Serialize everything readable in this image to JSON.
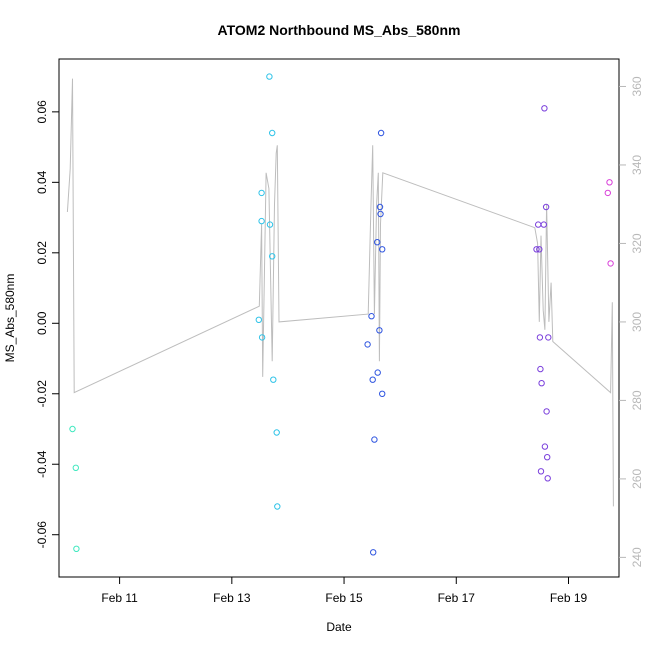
{
  "chart_data": {
    "type": "scatter",
    "title": "ATOM2 Northbound MS_Abs_580nm",
    "xlabel": "Date",
    "ylabel": "MS_Abs_580nm",
    "x_unit": "days since Feb 9 00:00",
    "xlim": [
      0.92,
      10.9
    ],
    "ylim": [
      -0.072,
      0.075
    ],
    "y2lim": [
      235,
      367
    ],
    "x_ticks": [
      {
        "value": 2,
        "label": "Feb 11"
      },
      {
        "value": 4,
        "label": "Feb 13"
      },
      {
        "value": 6,
        "label": "Feb 15"
      },
      {
        "value": 8,
        "label": "Feb 17"
      },
      {
        "value": 10,
        "label": "Feb 19"
      }
    ],
    "y_ticks": [
      {
        "value": -0.06,
        "label": "-0.06"
      },
      {
        "value": -0.04,
        "label": "-0.04"
      },
      {
        "value": -0.02,
        "label": "-0.02"
      },
      {
        "value": 0.0,
        "label": "0.00"
      },
      {
        "value": 0.02,
        "label": "0.02"
      },
      {
        "value": 0.04,
        "label": "0.04"
      },
      {
        "value": 0.06,
        "label": "0.06"
      }
    ],
    "y2_ticks": [
      {
        "value": 240,
        "label": "240"
      },
      {
        "value": 260,
        "label": "260"
      },
      {
        "value": 280,
        "label": "280"
      },
      {
        "value": 300,
        "label": "300"
      },
      {
        "value": 320,
        "label": "320"
      },
      {
        "value": 340,
        "label": "340"
      },
      {
        "value": 360,
        "label": "360"
      }
    ],
    "grid": false,
    "points": [
      {
        "x": 1.16,
        "y": -0.03,
        "color": "#3fe8bf"
      },
      {
        "x": 1.22,
        "y": -0.041,
        "color": "#3fe8bf"
      },
      {
        "x": 1.23,
        "y": -0.064,
        "color": "#3fe8bf"
      },
      {
        "x": 4.48,
        "y": 0.001,
        "color": "#2fc3e8"
      },
      {
        "x": 4.53,
        "y": 0.037,
        "color": "#2fc3e8"
      },
      {
        "x": 4.53,
        "y": 0.029,
        "color": "#2fc3e8"
      },
      {
        "x": 4.54,
        "y": -0.004,
        "color": "#2fc3e8"
      },
      {
        "x": 4.67,
        "y": 0.07,
        "color": "#2fc3e8"
      },
      {
        "x": 4.68,
        "y": 0.028,
        "color": "#2fc3e8"
      },
      {
        "x": 4.72,
        "y": 0.054,
        "color": "#2fc3e8"
      },
      {
        "x": 4.72,
        "y": 0.019,
        "color": "#2fc3e8"
      },
      {
        "x": 4.74,
        "y": -0.016,
        "color": "#2fc3e8"
      },
      {
        "x": 4.8,
        "y": -0.031,
        "color": "#2fc3e8"
      },
      {
        "x": 4.81,
        "y": -0.052,
        "color": "#2fc3e8"
      },
      {
        "x": 6.42,
        "y": -0.006,
        "color": "#2f55e0"
      },
      {
        "x": 6.49,
        "y": 0.002,
        "color": "#2f55e0"
      },
      {
        "x": 6.51,
        "y": -0.016,
        "color": "#2f55e0"
      },
      {
        "x": 6.54,
        "y": -0.033,
        "color": "#2f55e0"
      },
      {
        "x": 6.52,
        "y": -0.065,
        "color": "#2f55e0"
      },
      {
        "x": 6.59,
        "y": 0.023,
        "color": "#2f55e0"
      },
      {
        "x": 6.6,
        "y": -0.014,
        "color": "#2f55e0"
      },
      {
        "x": 6.63,
        "y": -0.002,
        "color": "#2f55e0"
      },
      {
        "x": 6.64,
        "y": 0.033,
        "color": "#2f55e0"
      },
      {
        "x": 6.65,
        "y": 0.031,
        "color": "#2f55e0"
      },
      {
        "x": 6.66,
        "y": 0.054,
        "color": "#2f55e0"
      },
      {
        "x": 6.68,
        "y": 0.021,
        "color": "#2f55e0"
      },
      {
        "x": 6.68,
        "y": -0.02,
        "color": "#2f55e0"
      },
      {
        "x": 9.43,
        "y": 0.021,
        "color": "#7a3fdc"
      },
      {
        "x": 9.46,
        "y": 0.028,
        "color": "#7a3fdc"
      },
      {
        "x": 9.48,
        "y": 0.021,
        "color": "#7a3fdc"
      },
      {
        "x": 9.49,
        "y": -0.004,
        "color": "#7a3fdc"
      },
      {
        "x": 9.5,
        "y": -0.013,
        "color": "#7a3fdc"
      },
      {
        "x": 9.51,
        "y": -0.042,
        "color": "#7a3fdc"
      },
      {
        "x": 9.52,
        "y": -0.017,
        "color": "#7a3fdc"
      },
      {
        "x": 9.56,
        "y": 0.028,
        "color": "#7a3fdc"
      },
      {
        "x": 9.57,
        "y": 0.061,
        "color": "#7a3fdc"
      },
      {
        "x": 9.58,
        "y": -0.035,
        "color": "#7a3fdc"
      },
      {
        "x": 9.6,
        "y": 0.033,
        "color": "#7a3fdc"
      },
      {
        "x": 9.61,
        "y": -0.025,
        "color": "#7a3fdc"
      },
      {
        "x": 9.62,
        "y": -0.038,
        "color": "#7a3fdc"
      },
      {
        "x": 9.63,
        "y": -0.044,
        "color": "#7a3fdc"
      },
      {
        "x": 9.64,
        "y": -0.004,
        "color": "#7a3fdc"
      },
      {
        "x": 10.7,
        "y": 0.037,
        "color": "#d93fd9"
      },
      {
        "x": 10.73,
        "y": 0.04,
        "color": "#d93fd9"
      },
      {
        "x": 10.75,
        "y": 0.017,
        "color": "#d93fd9"
      }
    ],
    "series": [
      {
        "name": "secondary-axis-trace",
        "axis": "right",
        "color": "#bdbdbd",
        "x": [
          1.07,
          1.12,
          1.16,
          1.19,
          4.49,
          4.53,
          4.55,
          4.61,
          4.66,
          4.72,
          4.76,
          4.79,
          4.81,
          4.84,
          6.43,
          6.48,
          6.51,
          6.54,
          6.58,
          6.61,
          6.63,
          6.65,
          6.69,
          9.4,
          9.45,
          9.48,
          9.51,
          9.55,
          9.58,
          9.61,
          9.65,
          9.69,
          9.72,
          10.75,
          10.78,
          10.8
        ],
        "y": [
          328,
          339,
          362,
          282,
          304,
          325,
          286,
          338,
          334,
          290,
          330,
          343,
          345,
          300,
          302,
          330,
          345,
          302,
          330,
          338,
          290,
          325,
          338,
          324,
          320,
          300,
          322,
          303,
          298,
          330,
          300,
          310,
          295,
          282,
          305,
          253
        ]
      }
    ]
  }
}
